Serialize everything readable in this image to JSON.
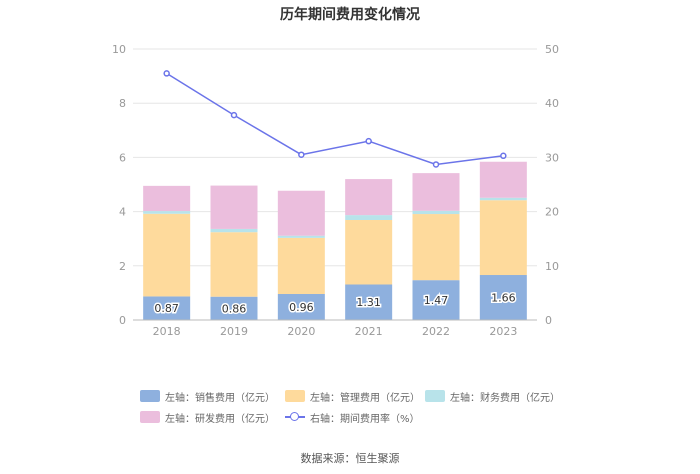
{
  "chart_data": {
    "type": "bar",
    "title": "历年期间费用变化情况",
    "categories": [
      "2018",
      "2019",
      "2020",
      "2021",
      "2022",
      "2023"
    ],
    "left_axis": {
      "min": 0,
      "max": 10,
      "ticks": [
        "0",
        "2",
        "4",
        "6",
        "8",
        "10"
      ]
    },
    "right_axis": {
      "min": 0,
      "max": 50,
      "ticks": [
        "0",
        "10",
        "20",
        "30",
        "40",
        "50"
      ]
    },
    "series": [
      {
        "name": "左轴：销售费用（亿元）",
        "axis": "left",
        "type": "stacked-bar",
        "color": "#8EB0DE",
        "values": [
          0.87,
          0.86,
          0.96,
          1.31,
          1.47,
          1.66
        ],
        "labels": [
          "0.87",
          "0.86",
          "0.96",
          "1.31",
          "1.47",
          "1.66"
        ]
      },
      {
        "name": "左轴：管理费用（亿元）",
        "axis": "left",
        "type": "stacked-bar",
        "color": "#FEDA9C",
        "values": [
          3.05,
          2.38,
          2.07,
          2.38,
          2.44,
          2.76
        ]
      },
      {
        "name": "左轴：财务费用（亿元）",
        "axis": "left",
        "type": "stacked-bar",
        "color": "#B8E3EA",
        "values": [
          0.1,
          0.12,
          0.08,
          0.18,
          0.12,
          0.09
        ]
      },
      {
        "name": "左轴：研发费用（亿元）",
        "axis": "left",
        "type": "stacked-bar",
        "color": "#EBBEDD",
        "values": [
          0.93,
          1.6,
          1.66,
          1.33,
          1.39,
          1.33
        ]
      },
      {
        "name": "右轴：期间费用率（%）",
        "axis": "right",
        "type": "line",
        "color": "#6B74E9",
        "values": [
          45.5,
          37.8,
          30.5,
          33.0,
          28.7,
          30.3
        ]
      }
    ],
    "source": "数据来源：恒生聚源"
  }
}
